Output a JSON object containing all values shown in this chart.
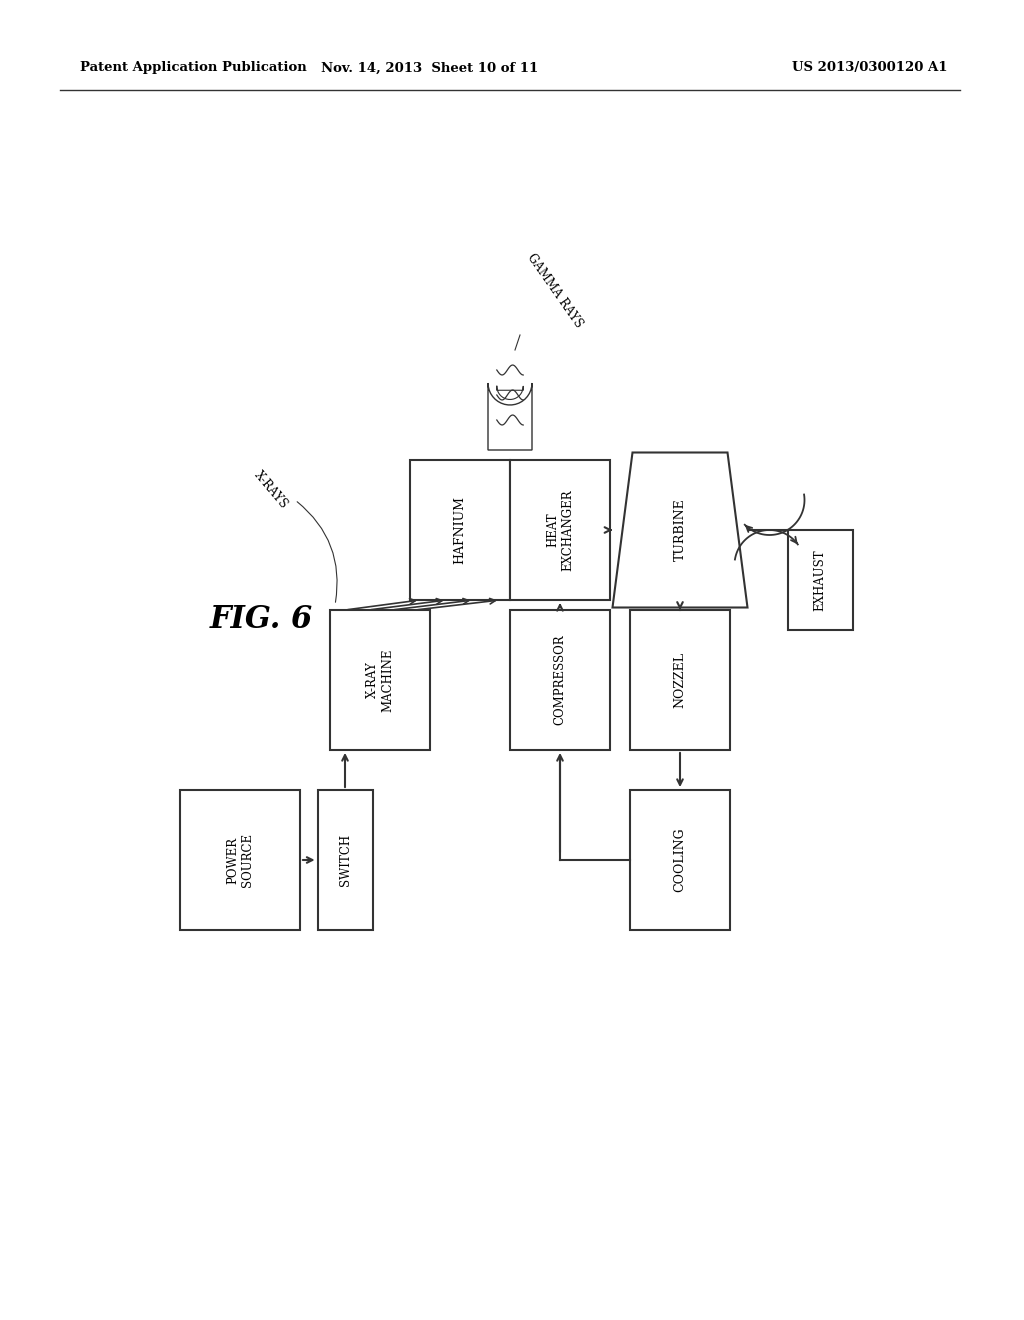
{
  "header_left": "Patent Application Publication",
  "header_mid": "Nov. 14, 2013  Sheet 10 of 11",
  "header_right": "US 2013/0300120 A1",
  "fig_label": "FIG. 6",
  "background": "#ffffff"
}
